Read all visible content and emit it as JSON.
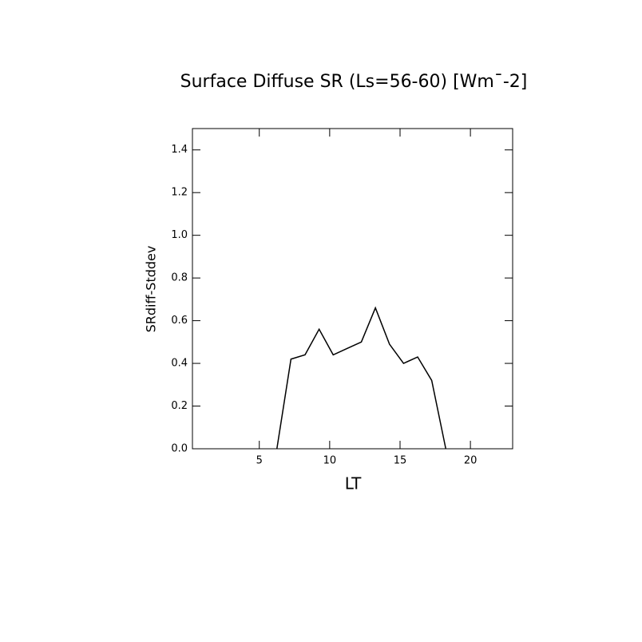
{
  "chart_data": {
    "type": "line",
    "title": "Surface Diffuse SR (Ls=56-60) [Wm¯-2]",
    "x_label": "LT",
    "y_label": "SRdiff-Stddev",
    "x": [
      6.25,
      7.25,
      8.25,
      9.25,
      10.25,
      11.25,
      12.25,
      13.25,
      14.25,
      15.25,
      16.25,
      17.25,
      18.25
    ],
    "series": [
      {
        "name": "SRdiff-Stddev",
        "color": "#000000",
        "values": [
          0,
          0.42,
          0.44,
          0.56,
          0.44,
          0.47,
          0.5,
          0.66,
          0.49,
          0.4,
          0.43,
          0.32,
          0
        ]
      }
    ],
    "xlim": [
      0.25,
      23.0
    ],
    "xticks": [
      5,
      10,
      15,
      20
    ],
    "ylim": [
      0,
      1.5
    ],
    "yticks": [
      {
        "value": 0,
        "label": "0.0"
      },
      {
        "value": 0.2,
        "label": "0.2"
      },
      {
        "value": 0.4,
        "label": "0.4"
      },
      {
        "value": 0.6,
        "label": "0.6"
      },
      {
        "value": 0.8,
        "label": "0.8"
      },
      {
        "value": 1.0,
        "label": "1.0"
      },
      {
        "value": 1.2,
        "label": "1.2"
      },
      {
        "value": 1.4,
        "label": "1.4"
      }
    ],
    "grid": false
  }
}
